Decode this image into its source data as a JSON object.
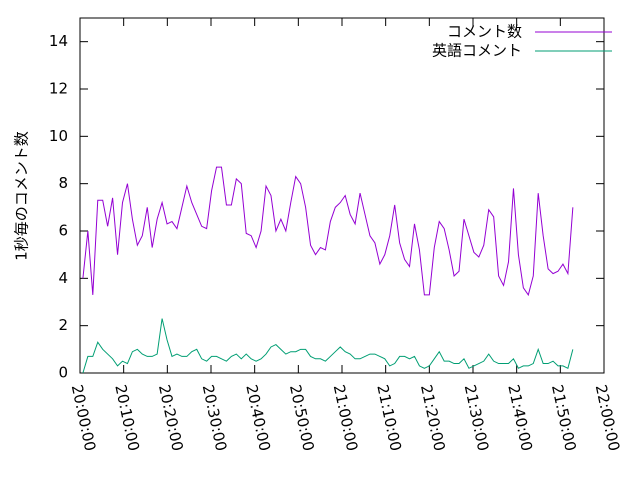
{
  "chart_data": {
    "type": "line",
    "ylabel": "1秒毎のコメント数",
    "xlim": [
      72000,
      79200
    ],
    "xticks": [
      {
        "value": 72000,
        "label": "20:00:00"
      },
      {
        "value": 72600,
        "label": "20:10:00"
      },
      {
        "value": 73200,
        "label": "20:20:00"
      },
      {
        "value": 73800,
        "label": "20:30:00"
      },
      {
        "value": 74400,
        "label": "20:40:00"
      },
      {
        "value": 75000,
        "label": "20:50:00"
      },
      {
        "value": 75600,
        "label": "21:00:00"
      },
      {
        "value": 76200,
        "label": "21:10:00"
      },
      {
        "value": 76800,
        "label": "21:20:00"
      },
      {
        "value": 77400,
        "label": "21:30:00"
      },
      {
        "value": 78000,
        "label": "21:40:00"
      },
      {
        "value": 78600,
        "label": "21:50:00"
      },
      {
        "value": 79200,
        "label": "22:00:00"
      }
    ],
    "ylim": [
      0,
      15
    ],
    "yticks": [
      0,
      2,
      4,
      6,
      8,
      10,
      12,
      14
    ],
    "legend": "top-right",
    "x": [
      72040,
      72108,
      72176,
      72244,
      72312,
      72380,
      72448,
      72516,
      72584,
      72652,
      72720,
      72788,
      72856,
      72924,
      72992,
      73060,
      73128,
      73196,
      73264,
      73332,
      73400,
      73468,
      73536,
      73604,
      73672,
      73740,
      73808,
      73876,
      73944,
      74012,
      74080,
      74148,
      74216,
      74284,
      74352,
      74420,
      74488,
      74556,
      74624,
      74692,
      74760,
      74828,
      74896,
      74964,
      75032,
      75100,
      75168,
      75236,
      75304,
      75372,
      75440,
      75508,
      75576,
      75644,
      75712,
      75780,
      75848,
      75916,
      75984,
      76052,
      76120,
      76188,
      76256,
      76324,
      76392,
      76460,
      76528,
      76596,
      76664,
      76732,
      76800,
      76868,
      76936,
      77004,
      77072,
      77140,
      77208,
      77276,
      77344,
      77412,
      77480,
      77548,
      77616,
      77684,
      77752,
      77820,
      77888,
      77956,
      78024,
      78092,
      78160,
      78228,
      78296,
      78364,
      78432,
      78500,
      78568,
      78636,
      78704,
      78772
    ],
    "series": [
      {
        "name": "コメント数",
        "color": "#9400d3",
        "values": [
          4.0,
          6.0,
          3.3,
          7.3,
          7.3,
          6.2,
          7.4,
          5.0,
          7.2,
          8.0,
          6.5,
          5.4,
          5.8,
          7.0,
          5.3,
          6.5,
          7.2,
          6.3,
          6.4,
          6.1,
          7.0,
          7.9,
          7.2,
          6.7,
          6.2,
          6.1,
          7.7,
          8.7,
          8.7,
          7.1,
          7.1,
          8.2,
          8.0,
          5.9,
          5.8,
          5.3,
          6.0,
          7.9,
          7.5,
          6.0,
          6.5,
          6.0,
          7.2,
          8.3,
          8.0,
          7.0,
          5.4,
          5.0,
          5.3,
          5.2,
          6.4,
          7.0,
          7.2,
          7.5,
          6.7,
          6.3,
          7.6,
          6.7,
          5.8,
          5.5,
          4.6,
          5.0,
          5.8,
          7.1,
          5.5,
          4.8,
          4.5,
          6.3,
          5.2,
          3.3,
          3.3,
          5.3,
          6.4,
          6.1,
          5.2,
          4.1,
          4.3,
          6.5,
          5.8,
          5.1,
          4.9,
          5.4,
          6.9,
          6.6,
          4.1,
          3.7,
          4.7,
          7.8,
          5.0,
          3.6,
          3.3,
          4.1,
          7.6,
          5.8,
          4.4,
          4.2,
          4.3,
          4.6,
          4.2,
          7.0
        ]
      },
      {
        "name": "英語コメント",
        "color": "#009e73",
        "values": [
          0.0,
          0.7,
          0.7,
          1.3,
          1.0,
          0.8,
          0.6,
          0.3,
          0.5,
          0.4,
          0.9,
          1.0,
          0.8,
          0.7,
          0.7,
          0.8,
          2.3,
          1.4,
          0.7,
          0.8,
          0.7,
          0.7,
          0.9,
          1.0,
          0.6,
          0.5,
          0.7,
          0.7,
          0.6,
          0.5,
          0.7,
          0.8,
          0.6,
          0.8,
          0.6,
          0.5,
          0.6,
          0.8,
          1.1,
          1.2,
          1.0,
          0.8,
          0.9,
          0.9,
          1.0,
          1.0,
          0.7,
          0.6,
          0.6,
          0.5,
          0.7,
          0.9,
          1.1,
          0.9,
          0.8,
          0.6,
          0.6,
          0.7,
          0.8,
          0.8,
          0.7,
          0.6,
          0.3,
          0.4,
          0.7,
          0.7,
          0.6,
          0.7,
          0.3,
          0.2,
          0.3,
          0.6,
          0.9,
          0.5,
          0.5,
          0.4,
          0.4,
          0.6,
          0.2,
          0.3,
          0.4,
          0.5,
          0.8,
          0.5,
          0.4,
          0.4,
          0.4,
          0.6,
          0.2,
          0.3,
          0.3,
          0.4,
          1.0,
          0.4,
          0.4,
          0.5,
          0.3,
          0.3,
          0.2,
          1.0
        ]
      }
    ]
  }
}
